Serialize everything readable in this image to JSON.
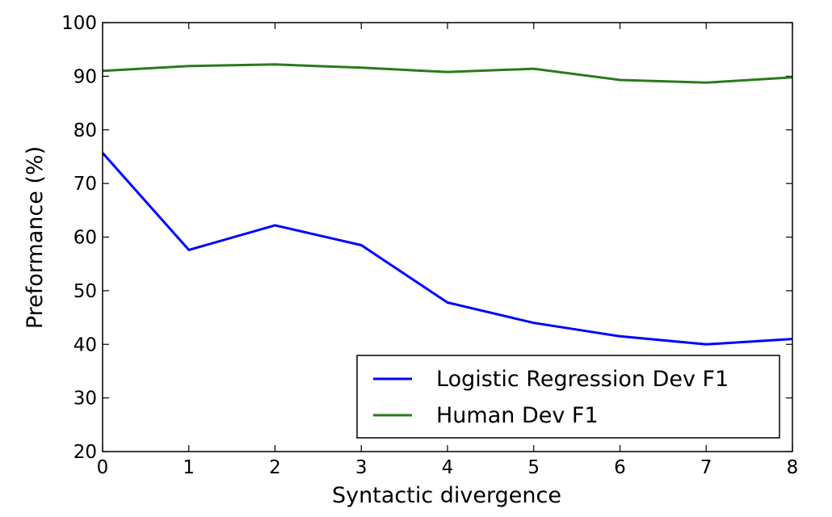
{
  "chart_data": {
    "type": "line",
    "x": [
      0,
      1,
      2,
      3,
      4,
      5,
      6,
      7,
      8
    ],
    "series": [
      {
        "name": "Logistic Regression Dev F1",
        "color": "#0000ff",
        "values": [
          75.7,
          57.6,
          62.2,
          58.5,
          47.8,
          44.0,
          41.5,
          40.0,
          41.0
        ]
      },
      {
        "name": "Human Dev F1",
        "color": "#2a7a1c",
        "values": [
          91.0,
          91.9,
          92.2,
          91.6,
          90.8,
          91.4,
          89.3,
          88.8,
          89.8
        ]
      }
    ],
    "title": "",
    "xlabel": "Syntactic divergence",
    "ylabel": "Preformance (%)",
    "xlim": [
      0,
      8
    ],
    "ylim": [
      20,
      100
    ],
    "xticks": [
      "0",
      "1",
      "2",
      "3",
      "4",
      "5",
      "6",
      "7",
      "8"
    ],
    "yticks": [
      "20",
      "30",
      "40",
      "50",
      "60",
      "70",
      "80",
      "90",
      "100"
    ],
    "grid": false,
    "legend_position": "lower-right"
  }
}
